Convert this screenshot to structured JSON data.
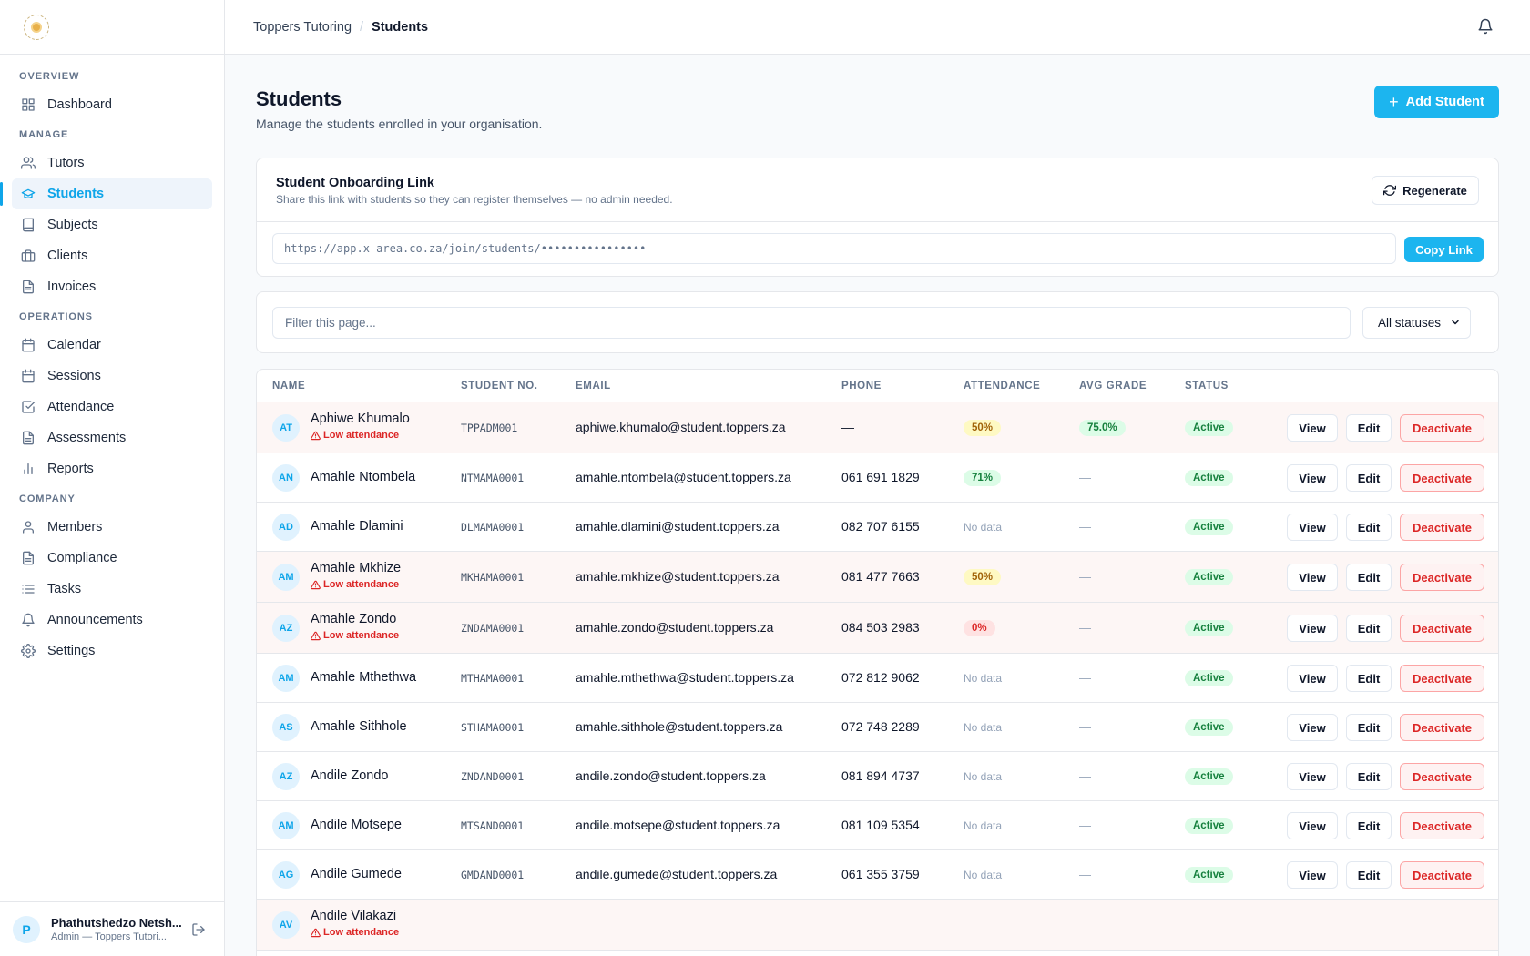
{
  "breadcrumb": {
    "org": "Toppers Tutoring",
    "current": "Students"
  },
  "sidebar": {
    "sections": [
      {
        "label": "OVERVIEW",
        "items": [
          {
            "label": "Dashboard",
            "icon": "grid-icon"
          }
        ]
      },
      {
        "label": "MANAGE",
        "items": [
          {
            "label": "Tutors",
            "icon": "users-icon"
          },
          {
            "label": "Students",
            "icon": "graduation-cap-icon",
            "active": true
          },
          {
            "label": "Subjects",
            "icon": "book-icon"
          },
          {
            "label": "Clients",
            "icon": "briefcase-icon"
          },
          {
            "label": "Invoices",
            "icon": "file-text-icon"
          }
        ]
      },
      {
        "label": "OPERATIONS",
        "items": [
          {
            "label": "Calendar",
            "icon": "calendar-icon"
          },
          {
            "label": "Sessions",
            "icon": "calendar-icon"
          },
          {
            "label": "Attendance",
            "icon": "check-square-icon"
          },
          {
            "label": "Assessments",
            "icon": "file-text-icon"
          },
          {
            "label": "Reports",
            "icon": "bar-chart-icon"
          }
        ]
      },
      {
        "label": "COMPANY",
        "items": [
          {
            "label": "Members",
            "icon": "user-icon"
          },
          {
            "label": "Compliance",
            "icon": "file-text-icon"
          },
          {
            "label": "Tasks",
            "icon": "list-icon"
          },
          {
            "label": "Announcements",
            "icon": "bell-icon"
          },
          {
            "label": "Settings",
            "icon": "gear-icon"
          }
        ]
      }
    ]
  },
  "user": {
    "initial": "P",
    "name": "Phathutshedzo Netsh...",
    "role": "Admin — Toppers Tutori..."
  },
  "page": {
    "title": "Students",
    "subtitle": "Manage the students enrolled in your organisation.",
    "add_label": "Add Student"
  },
  "onboarding": {
    "title": "Student Onboarding Link",
    "description": "Share this link with students so they can register themselves — no admin needed.",
    "regenerate_label": "Regenerate",
    "link": "https://app.x-area.co.za/join/students/••••••••••••••••",
    "copy_label": "Copy Link"
  },
  "filter": {
    "placeholder": "Filter this page...",
    "status_selected": "All statuses"
  },
  "table": {
    "headers": {
      "name": "NAME",
      "student_no": "STUDENT NO.",
      "email": "EMAIL",
      "phone": "PHONE",
      "attendance": "ATTENDANCE",
      "avg_grade": "AVG GRADE",
      "status": "STATUS"
    },
    "low_attendance_label": "Low attendance",
    "view_label": "View",
    "edit_label": "Edit",
    "deactivate_label": "Deactivate",
    "rows": [
      {
        "initials": "AT",
        "name": "Aphiwe Khumalo",
        "low": true,
        "sno": "TPPADM001",
        "email": "aphiwe.khumalo@student.toppers.za",
        "phone": "—",
        "att": "50%",
        "att_tone": "yellow",
        "grade": "75.0%",
        "status": "Active"
      },
      {
        "initials": "AN",
        "name": "Amahle Ntombela",
        "low": false,
        "sno": "NTMAMA0001",
        "email": "amahle.ntombela@student.toppers.za",
        "phone": "061 691 1829",
        "att": "71%",
        "att_tone": "green",
        "grade": "—",
        "status": "Active"
      },
      {
        "initials": "AD",
        "name": "Amahle Dlamini",
        "low": false,
        "sno": "DLMAMA0001",
        "email": "amahle.dlamini@student.toppers.za",
        "phone": "082 707 6155",
        "att": "No data",
        "att_tone": "none",
        "grade": "—",
        "status": "Active"
      },
      {
        "initials": "AM",
        "name": "Amahle Mkhize",
        "low": true,
        "sno": "MKHAMA0001",
        "email": "amahle.mkhize@student.toppers.za",
        "phone": "081 477 7663",
        "att": "50%",
        "att_tone": "yellow",
        "grade": "—",
        "status": "Active"
      },
      {
        "initials": "AZ",
        "name": "Amahle Zondo",
        "low": true,
        "sno": "ZNDAMA0001",
        "email": "amahle.zondo@student.toppers.za",
        "phone": "084 503 2983",
        "att": "0%",
        "att_tone": "red",
        "grade": "—",
        "status": "Active"
      },
      {
        "initials": "AM",
        "name": "Amahle Mthethwa",
        "low": false,
        "sno": "MTHAMA0001",
        "email": "amahle.mthethwa@student.toppers.za",
        "phone": "072 812 9062",
        "att": "No data",
        "att_tone": "none",
        "grade": "—",
        "status": "Active"
      },
      {
        "initials": "AS",
        "name": "Amahle Sithhole",
        "low": false,
        "sno": "STHAMA0001",
        "email": "amahle.sithhole@student.toppers.za",
        "phone": "072 748 2289",
        "att": "No data",
        "att_tone": "none",
        "grade": "—",
        "status": "Active"
      },
      {
        "initials": "AZ",
        "name": "Andile Zondo",
        "low": false,
        "sno": "ZNDAND0001",
        "email": "andile.zondo@student.toppers.za",
        "phone": "081 894 4737",
        "att": "No data",
        "att_tone": "none",
        "grade": "—",
        "status": "Active"
      },
      {
        "initials": "AM",
        "name": "Andile Motsepe",
        "low": false,
        "sno": "MTSAND0001",
        "email": "andile.motsepe@student.toppers.za",
        "phone": "081 109 5354",
        "att": "No data",
        "att_tone": "none",
        "grade": "—",
        "status": "Active"
      },
      {
        "initials": "AG",
        "name": "Andile Gumede",
        "low": false,
        "sno": "GMDAND0001",
        "email": "andile.gumede@student.toppers.za",
        "phone": "061 355 3759",
        "att": "No data",
        "att_tone": "none",
        "grade": "—",
        "status": "Active"
      },
      {
        "initials": "AV",
        "name": "Andile Vilakazi",
        "low": true,
        "sno": "",
        "email": "",
        "phone": "",
        "att": "",
        "att_tone": "none",
        "grade": "",
        "status": ""
      }
    ]
  },
  "colors": {
    "accent": "#1cb5ef",
    "danger": "#dc2626",
    "success": "#15803d",
    "warn_row": "#fdf6f5"
  }
}
